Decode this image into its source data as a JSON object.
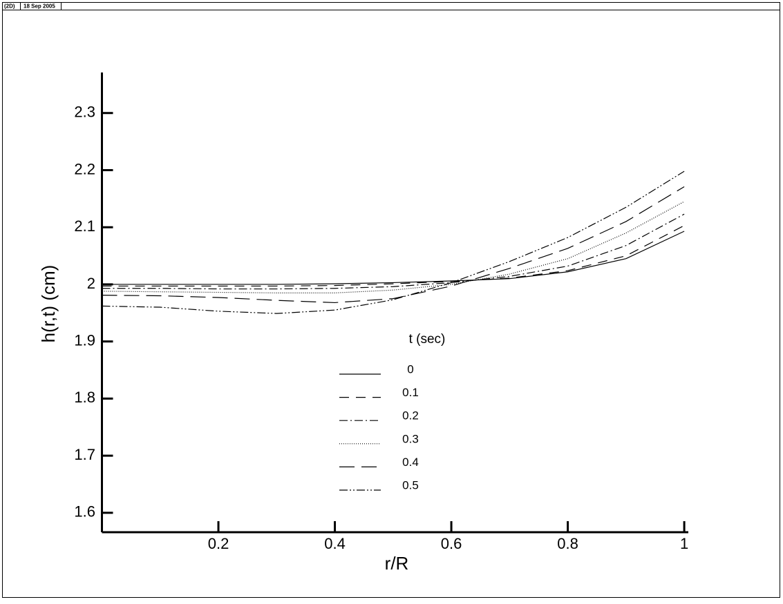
{
  "header": {
    "mode": "(2D)",
    "date": "18 Sep 2005"
  },
  "chart_data": {
    "type": "line",
    "x_label": "r/R",
    "y_label": "h(r,t) (cm)",
    "legend_title": "t (sec)",
    "x": [
      0,
      0.1,
      0.2,
      0.3,
      0.4,
      0.5,
      0.6,
      0.7,
      0.8,
      0.9,
      1
    ],
    "xlim": [
      0,
      1.007
    ],
    "ylim": [
      1.566,
      2.371
    ],
    "xticks": [
      0.2,
      0.4,
      0.6,
      0.8,
      1
    ],
    "yticks": [
      1.6,
      1.7,
      1.8,
      1.9,
      2,
      2.1,
      2.2,
      2.3
    ],
    "series": [
      {
        "name": "0",
        "color": "#000000",
        "dash": "none",
        "values": [
          2.0,
          2.0,
          2.0,
          2.0,
          2.001,
          2.003,
          2.006,
          2.01,
          2.022,
          2.045,
          2.093
        ]
      },
      {
        "name": "0.1",
        "color": "#000000",
        "dash": "14,10",
        "values": [
          1.997,
          1.997,
          1.997,
          1.997,
          1.998,
          2.001,
          2.005,
          2.011,
          2.024,
          2.05,
          2.103
        ]
      },
      {
        "name": "0.2",
        "color": "#000000",
        "dash": "12,4,2,4",
        "values": [
          1.993,
          1.993,
          1.992,
          1.992,
          1.993,
          1.996,
          2.003,
          2.014,
          2.032,
          2.068,
          2.123
        ]
      },
      {
        "name": "0.3",
        "color": "#000000",
        "dash": "1,2",
        "values": [
          1.988,
          1.987,
          1.986,
          1.985,
          1.985,
          1.99,
          2.0,
          2.018,
          2.045,
          2.09,
          2.145
        ]
      },
      {
        "name": "0.4",
        "color": "#000000",
        "dash": "22,10",
        "values": [
          1.981,
          1.98,
          1.977,
          1.972,
          1.968,
          1.975,
          1.997,
          2.028,
          2.063,
          2.11,
          2.171
        ]
      },
      {
        "name": "0.5",
        "color": "#000000",
        "dash": "12,3,2,3,2,3",
        "values": [
          1.962,
          1.96,
          1.953,
          1.949,
          1.955,
          1.973,
          2.003,
          2.04,
          2.082,
          2.135,
          2.198
        ]
      }
    ]
  }
}
